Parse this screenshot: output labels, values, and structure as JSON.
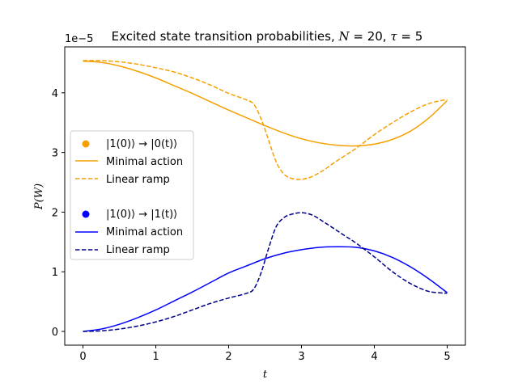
{
  "chart_data": {
    "type": "line",
    "title": "Excited state transition probabilities, N = 20, τ = 5",
    "title_parts": {
      "lead": "Excited state transition probabilities, ",
      "N_sym": "N",
      "N_val": " = 20, ",
      "tau_sym": "τ",
      "tau_val": " = 5"
    },
    "xlabel": "t",
    "ylabel": "P(W)",
    "offset_text": "1e−5",
    "xlim": [
      -0.25,
      5.25
    ],
    "ylim": [
      -0.23,
      4.77
    ],
    "xticks": [
      0,
      1,
      2,
      3,
      4,
      5
    ],
    "yticks": [
      0,
      1,
      2,
      3,
      4
    ],
    "grid": false,
    "legend_placement": "center-left",
    "legend_groups": [
      {
        "header": "|1(0)⟩ → |0(t)⟩",
        "color": "#f5a000",
        "items": [
          "Minimal action",
          "Linear ramp"
        ]
      },
      {
        "header": "|1(0)⟩ → |1(t)⟩",
        "color": "#0000ff",
        "items": [
          "Minimal action",
          "Linear ramp"
        ]
      }
    ],
    "series": [
      {
        "name": "Minimal action",
        "group": "|1(0)⟩ → |0(t)⟩",
        "color": "#f5a000",
        "style": "solid",
        "x": [
          0,
          0.25,
          0.5,
          0.75,
          1.0,
          1.25,
          1.5,
          1.75,
          2.0,
          2.25,
          2.5,
          2.75,
          3.0,
          3.25,
          3.5,
          3.75,
          4.0,
          4.25,
          4.5,
          4.75,
          5.0
        ],
        "y": [
          4.53,
          4.51,
          4.45,
          4.36,
          4.25,
          4.12,
          3.99,
          3.85,
          3.71,
          3.58,
          3.45,
          3.33,
          3.23,
          3.16,
          3.12,
          3.11,
          3.14,
          3.22,
          3.36,
          3.58,
          3.87
        ]
      },
      {
        "name": "Linear ramp",
        "group": "|1(0)⟩ → |0(t)⟩",
        "color": "#f5a000",
        "style": "dashed",
        "x": [
          0,
          0.25,
          0.5,
          0.75,
          1.0,
          1.25,
          1.5,
          1.75,
          2.0,
          2.25,
          2.35,
          2.45,
          2.55,
          2.65,
          2.75,
          2.85,
          3.0,
          3.15,
          3.3,
          3.45,
          3.6,
          3.75,
          4.0,
          4.25,
          4.5,
          4.75,
          5.0
        ],
        "y": [
          4.54,
          4.54,
          4.52,
          4.48,
          4.42,
          4.35,
          4.25,
          4.13,
          3.99,
          3.88,
          3.8,
          3.55,
          3.2,
          2.85,
          2.65,
          2.57,
          2.55,
          2.6,
          2.7,
          2.83,
          2.95,
          3.07,
          3.3,
          3.5,
          3.68,
          3.82,
          3.89
        ]
      },
      {
        "name": "Minimal action",
        "group": "|1(0)⟩ → |1(t)⟩",
        "color": "#0000ff",
        "style": "solid",
        "x": [
          0,
          0.25,
          0.5,
          0.75,
          1.0,
          1.25,
          1.5,
          1.75,
          2.0,
          2.25,
          2.5,
          2.75,
          3.0,
          3.25,
          3.5,
          3.75,
          4.0,
          4.25,
          4.5,
          4.75,
          5.0
        ],
        "y": [
          0.0,
          0.04,
          0.12,
          0.23,
          0.36,
          0.51,
          0.66,
          0.82,
          0.98,
          1.1,
          1.22,
          1.31,
          1.37,
          1.41,
          1.42,
          1.41,
          1.35,
          1.24,
          1.08,
          0.88,
          0.65
        ]
      },
      {
        "name": "Linear ramp",
        "group": "|1(0)⟩ → |1(t)⟩",
        "color": "#00008b",
        "style": "dashed",
        "x": [
          0,
          0.25,
          0.5,
          0.75,
          1.0,
          1.25,
          1.5,
          1.75,
          2.0,
          2.25,
          2.35,
          2.45,
          2.55,
          2.65,
          2.75,
          2.85,
          3.0,
          3.15,
          3.3,
          3.45,
          3.6,
          3.75,
          4.0,
          4.25,
          4.5,
          4.75,
          5.0
        ],
        "y": [
          0.0,
          0.01,
          0.04,
          0.09,
          0.16,
          0.25,
          0.36,
          0.47,
          0.56,
          0.64,
          0.72,
          1.0,
          1.4,
          1.75,
          1.9,
          1.96,
          1.99,
          1.95,
          1.84,
          1.72,
          1.6,
          1.48,
          1.25,
          1.0,
          0.8,
          0.67,
          0.64
        ]
      }
    ]
  }
}
